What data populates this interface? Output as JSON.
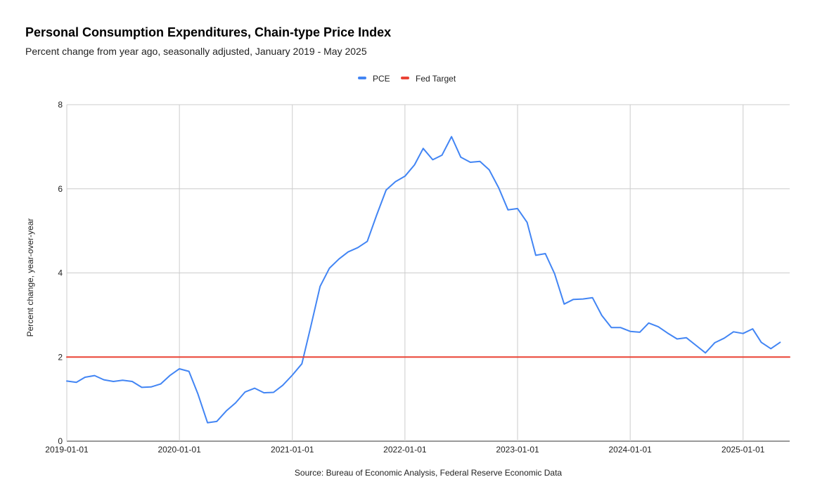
{
  "chart_data": {
    "type": "line",
    "title": "Personal Consumption Expenditures, Chain-type Price Index",
    "subtitle": "Percent change from year ago, seasonally adjusted, January 2019 - May 2025",
    "ylabel": "Percent change, year-over-year",
    "source": "Source: Bureau of Economic Analysis, Federal Reserve Economic Data",
    "ylim": [
      0,
      8
    ],
    "y_ticks": [
      0,
      2,
      4,
      6,
      8
    ],
    "x_ticks": [
      "2019-01-01",
      "2020-01-01",
      "2021-01-01",
      "2022-01-01",
      "2023-01-01",
      "2024-01-01",
      "2025-01-01"
    ],
    "xlim": [
      "2019-01-01",
      "2025-06-01"
    ],
    "grid": true,
    "legend_position": "top-center",
    "series": [
      {
        "name": "PCE",
        "color": "#4285f4",
        "x": [
          "2019-01-01",
          "2019-02-01",
          "2019-03-01",
          "2019-04-01",
          "2019-05-01",
          "2019-06-01",
          "2019-07-01",
          "2019-08-01",
          "2019-09-01",
          "2019-10-01",
          "2019-11-01",
          "2019-12-01",
          "2020-01-01",
          "2020-02-01",
          "2020-03-01",
          "2020-04-01",
          "2020-05-01",
          "2020-06-01",
          "2020-07-01",
          "2020-08-01",
          "2020-09-01",
          "2020-10-01",
          "2020-11-01",
          "2020-12-01",
          "2021-01-01",
          "2021-02-01",
          "2021-03-01",
          "2021-04-01",
          "2021-05-01",
          "2021-06-01",
          "2021-07-01",
          "2021-08-01",
          "2021-09-01",
          "2021-10-01",
          "2021-11-01",
          "2021-12-01",
          "2022-01-01",
          "2022-02-01",
          "2022-03-01",
          "2022-04-01",
          "2022-05-01",
          "2022-06-01",
          "2022-07-01",
          "2022-08-01",
          "2022-09-01",
          "2022-10-01",
          "2022-11-01",
          "2022-12-01",
          "2023-01-01",
          "2023-02-01",
          "2023-03-01",
          "2023-04-01",
          "2023-05-01",
          "2023-06-01",
          "2023-07-01",
          "2023-08-01",
          "2023-09-01",
          "2023-10-01",
          "2023-11-01",
          "2023-12-01",
          "2024-01-01",
          "2024-02-01",
          "2024-03-01",
          "2024-04-01",
          "2024-05-01",
          "2024-06-01",
          "2024-07-01",
          "2024-08-01",
          "2024-09-01",
          "2024-10-01",
          "2024-11-01",
          "2024-12-01",
          "2025-01-01",
          "2025-02-01",
          "2025-03-01",
          "2025-04-01",
          "2025-05-01"
        ],
        "values": [
          1.43,
          1.4,
          1.52,
          1.56,
          1.46,
          1.42,
          1.45,
          1.42,
          1.28,
          1.29,
          1.36,
          1.56,
          1.72,
          1.66,
          1.12,
          0.44,
          0.47,
          0.72,
          0.91,
          1.17,
          1.26,
          1.15,
          1.16,
          1.33,
          1.57,
          1.84,
          2.7,
          3.68,
          4.11,
          4.33,
          4.5,
          4.6,
          4.75,
          5.37,
          5.97,
          6.17,
          6.3,
          6.57,
          6.96,
          6.69,
          6.8,
          7.24,
          6.75,
          6.63,
          6.65,
          6.45,
          6.02,
          5.5,
          5.53,
          5.2,
          4.42,
          4.46,
          3.98,
          3.26,
          3.37,
          3.38,
          3.41,
          2.99,
          2.7,
          2.7,
          2.61,
          2.59,
          2.81,
          2.72,
          2.57,
          2.43,
          2.46,
          2.28,
          2.1,
          2.34,
          2.45,
          2.6,
          2.56,
          2.67,
          2.35,
          2.2,
          2.35
        ]
      },
      {
        "name": "Fed Target",
        "color": "#ea4335",
        "x": [
          "2019-01-01",
          "2025-06-01"
        ],
        "values": [
          2,
          2
        ]
      }
    ]
  }
}
